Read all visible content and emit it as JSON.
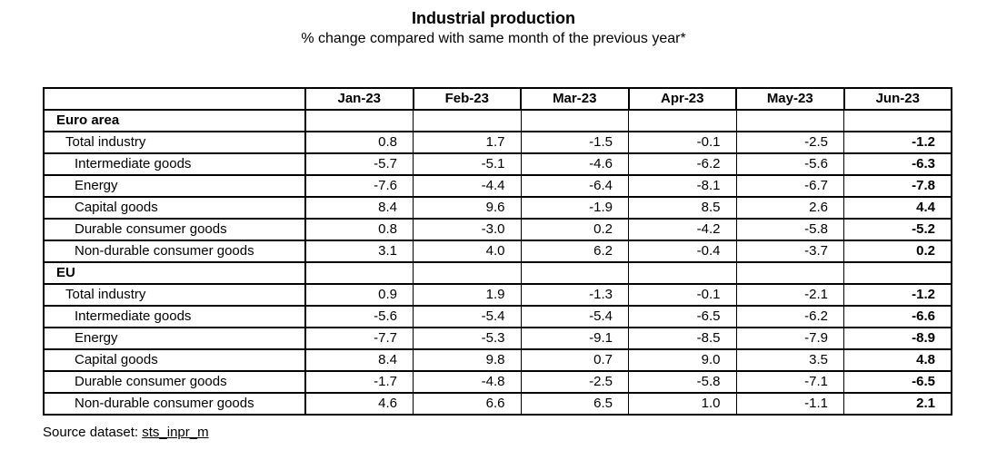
{
  "chart_data": {
    "type": "table",
    "title": "Industrial production",
    "subtitle": "% change compared with same month of the previous year*",
    "columns": [
      "Jan-23",
      "Feb-23",
      "Mar-23",
      "Apr-23",
      "May-23",
      "Jun-23"
    ],
    "corner_label": "",
    "rows": [
      {
        "label": "Euro area",
        "section": true,
        "indent": 0,
        "values": [
          "",
          "",
          "",
          "",
          "",
          ""
        ]
      },
      {
        "label": "Total industry",
        "section": false,
        "indent": 1,
        "values": [
          "0.8",
          "1.7",
          "-1.5",
          "-0.1",
          "-2.5",
          "-1.2"
        ]
      },
      {
        "label": "Intermediate goods",
        "section": false,
        "indent": 2,
        "values": [
          "-5.7",
          "-5.1",
          "-4.6",
          "-6.2",
          "-5.6",
          "-6.3"
        ]
      },
      {
        "label": "Energy",
        "section": false,
        "indent": 2,
        "values": [
          "-7.6",
          "-4.4",
          "-6.4",
          "-8.1",
          "-6.7",
          "-7.8"
        ]
      },
      {
        "label": "Capital goods",
        "section": false,
        "indent": 2,
        "values": [
          "8.4",
          "9.6",
          "-1.9",
          "8.5",
          "2.6",
          "4.4"
        ]
      },
      {
        "label": "Durable consumer goods",
        "section": false,
        "indent": 2,
        "values": [
          "0.8",
          "-3.0",
          "0.2",
          "-4.2",
          "-5.8",
          "-5.2"
        ]
      },
      {
        "label": "Non-durable consumer goods",
        "section": false,
        "indent": 2,
        "values": [
          "3.1",
          "4.0",
          "6.2",
          "-0.4",
          "-3.7",
          "0.2"
        ]
      },
      {
        "label": "EU",
        "section": true,
        "indent": 0,
        "values": [
          "",
          "",
          "",
          "",
          "",
          ""
        ]
      },
      {
        "label": "Total industry",
        "section": false,
        "indent": 1,
        "values": [
          "0.9",
          "1.9",
          "-1.3",
          "-0.1",
          "-2.1",
          "-1.2"
        ]
      },
      {
        "label": "Intermediate goods",
        "section": false,
        "indent": 2,
        "values": [
          "-5.6",
          "-5.4",
          "-5.4",
          "-6.5",
          "-6.2",
          "-6.6"
        ]
      },
      {
        "label": "Energy",
        "section": false,
        "indent": 2,
        "values": [
          "-7.7",
          "-5.3",
          "-9.1",
          "-8.5",
          "-7.9",
          "-8.9"
        ]
      },
      {
        "label": "Capital goods",
        "section": false,
        "indent": 2,
        "values": [
          "8.4",
          "9.8",
          "0.7",
          "9.0",
          "3.5",
          "4.8"
        ]
      },
      {
        "label": "Durable consumer goods",
        "section": false,
        "indent": 2,
        "values": [
          "-1.7",
          "-4.8",
          "-2.5",
          "-5.8",
          "-7.1",
          "-6.5"
        ]
      },
      {
        "label": "Non-durable consumer goods",
        "section": false,
        "indent": 2,
        "values": [
          "4.6",
          "6.6",
          "6.5",
          "1.0",
          "-1.1",
          "2.1"
        ]
      }
    ],
    "layout": {
      "last_column_bold": true,
      "grid": "all-borders",
      "border_color": "#000000",
      "background_color": "#ffffff"
    }
  },
  "source": {
    "prefix": "Source dataset: ",
    "link": "sts_inpr_m"
  }
}
